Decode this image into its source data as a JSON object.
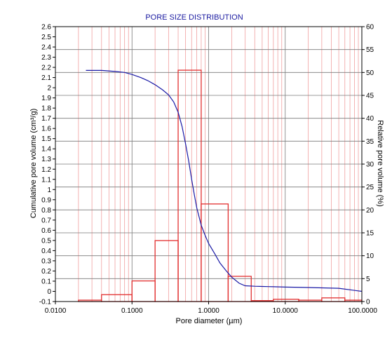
{
  "chart_data": {
    "type": "bar+line",
    "title": "PORE SIZE DISTRIBUTION",
    "xlabel": "Pore diameter (µm)",
    "ylabel_left": "Cumulative pore volume (cm³/g)",
    "ylabel_right": "Relative pore volume (%)",
    "x_scale": "log",
    "xlim": [
      0.01,
      100
    ],
    "ylim_left": [
      -0.1,
      2.6
    ],
    "ylim_right": [
      0,
      60
    ],
    "grid": true,
    "x_ticks": [
      "0.0100",
      "0.1000",
      "1.0000",
      "10.0000",
      "100.0000"
    ],
    "y_left_ticks": [
      "-0.1",
      "0",
      "0.1",
      "0.2",
      "0.3",
      "0.4",
      "0.5",
      "0.6",
      "0.7",
      "0.8",
      "0.9",
      "1",
      "1.1",
      "1.2",
      "1.3",
      "1.4",
      "1.5",
      "1.6",
      "1.7",
      "1.8",
      "1.9",
      "2",
      "2.1",
      "2.2",
      "2.3",
      "2.4",
      "2.5",
      "2.6"
    ],
    "y_right_ticks": [
      "0",
      "5",
      "10",
      "15",
      "20",
      "25",
      "30",
      "35",
      "40",
      "45",
      "50",
      "55",
      "60"
    ],
    "colors": {
      "histogram": "#e23030",
      "curve": "#1a1aa6",
      "major_grid": "#7a7a7a",
      "minor_grid": "#f0a0a0"
    },
    "histogram": {
      "name": "Relative pore volume",
      "axis": "right",
      "bins": [
        {
          "x0": 0.02,
          "x1": 0.04,
          "value": 0.3
        },
        {
          "x0": 0.04,
          "x1": 0.1,
          "value": 1.5
        },
        {
          "x0": 0.1,
          "x1": 0.2,
          "value": 4.5
        },
        {
          "x0": 0.2,
          "x1": 0.4,
          "value": 13.3
        },
        {
          "x0": 0.4,
          "x1": 0.8,
          "value": 50.5
        },
        {
          "x0": 0.8,
          "x1": 1.8,
          "value": 21.3
        },
        {
          "x0": 1.8,
          "x1": 3.6,
          "value": 5.5
        },
        {
          "x0": 3.6,
          "x1": 7.0,
          "value": 0.2
        },
        {
          "x0": 7.0,
          "x1": 15,
          "value": 0.5
        },
        {
          "x0": 15,
          "x1": 30,
          "value": 0.3
        },
        {
          "x0": 30,
          "x1": 60,
          "value": 0.8
        },
        {
          "x0": 60,
          "x1": 100,
          "value": 0.3
        }
      ]
    },
    "series": [
      {
        "name": "Cumulative pore volume",
        "axis": "left",
        "x": [
          0.025,
          0.04,
          0.06,
          0.08,
          0.1,
          0.13,
          0.16,
          0.2,
          0.25,
          0.3,
          0.35,
          0.4,
          0.45,
          0.5,
          0.55,
          0.6,
          0.65,
          0.7,
          0.8,
          0.9,
          1.0,
          1.2,
          1.4,
          1.7,
          2.0,
          2.5,
          3.0,
          4.0,
          5.0,
          7.0,
          10,
          20,
          50,
          100
        ],
        "y": [
          2.17,
          2.17,
          2.16,
          2.15,
          2.13,
          2.1,
          2.07,
          2.03,
          1.98,
          1.93,
          1.86,
          1.76,
          1.62,
          1.45,
          1.28,
          1.1,
          0.95,
          0.82,
          0.65,
          0.55,
          0.47,
          0.37,
          0.28,
          0.2,
          0.14,
          0.08,
          0.055,
          0.05,
          0.048,
          0.045,
          0.042,
          0.038,
          0.03,
          0.0
        ]
      }
    ]
  }
}
